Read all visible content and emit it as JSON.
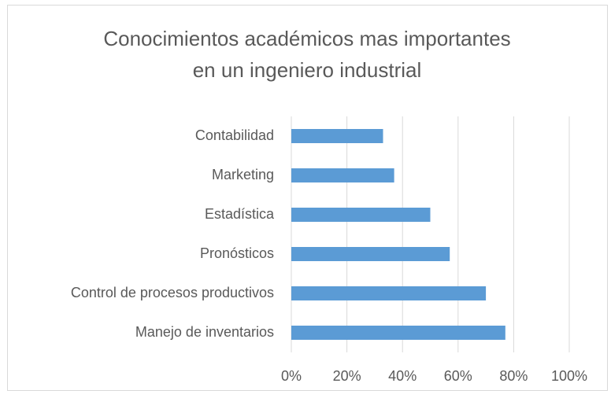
{
  "chart_data": {
    "type": "barh",
    "title": [
      "Conocimientos académicos mas importantes",
      "en un ingeniero industrial"
    ],
    "categories": [
      "Contabilidad",
      "Marketing",
      "Estadística",
      "Pronósticos",
      "Control de procesos productivos",
      "Manejo de inventarios"
    ],
    "values": [
      33,
      37,
      50,
      57,
      70,
      77
    ],
    "color": "#5b9bd5",
    "xlim": [
      0,
      100
    ],
    "xticks": [
      {
        "value": 0,
        "label": "0%"
      },
      {
        "value": 20,
        "label": "20%"
      },
      {
        "value": 40,
        "label": "40%"
      },
      {
        "value": 60,
        "label": "60%"
      },
      {
        "value": 80,
        "label": "80%"
      },
      {
        "value": 100,
        "label": "100%"
      }
    ],
    "grid": true
  }
}
